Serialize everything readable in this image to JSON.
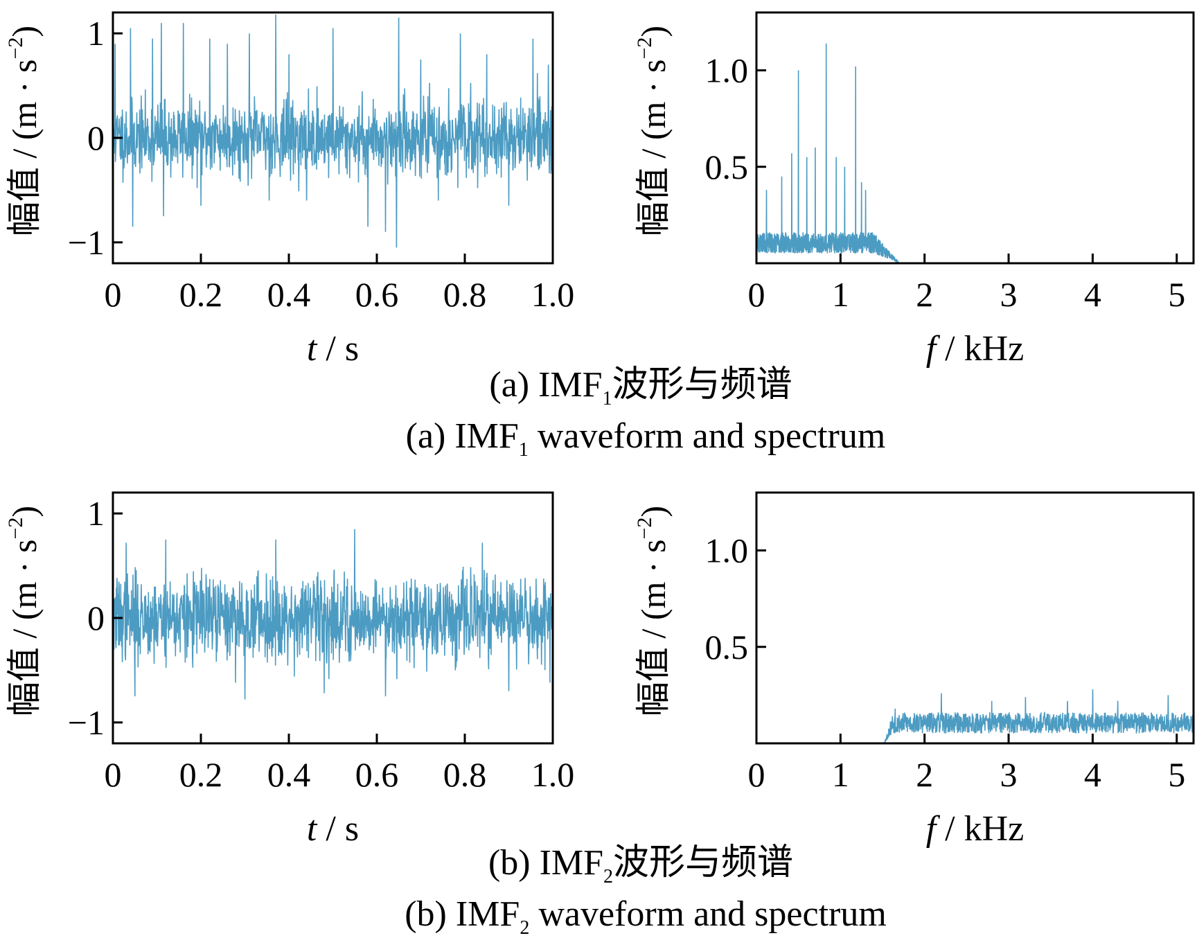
{
  "colors": {
    "signal": "#4c9bc2",
    "axis": "#000000",
    "background": "#ffffff"
  },
  "chart_data": [
    {
      "id": "a-wave",
      "type": "line",
      "title": "",
      "xlabel_italic": "t",
      "xlabel_rest": " / s",
      "ylabel": "幅值 / (m · s",
      "ylabel_sup": "−2",
      "ylabel_close": ")",
      "xlim": [
        0,
        1.0
      ],
      "ylim": [
        -1.2,
        1.2
      ],
      "xticks": [
        0,
        0.2,
        0.4,
        0.6,
        0.8,
        1.0
      ],
      "xticklabels": [
        "0",
        "0.2",
        "0.4",
        "0.6",
        "0.8",
        "1.0"
      ],
      "yticks": [
        -1,
        0,
        1
      ],
      "yticklabels": [
        "−1",
        "0",
        "1"
      ],
      "series": [
        {
          "name": "IMF1 waveform",
          "n": 1400,
          "seed": 11,
          "sigma": 0.17,
          "spikes": [
            [
              0.005,
              0.9
            ],
            [
              0.04,
              1.05
            ],
            [
              0.045,
              -0.85
            ],
            [
              0.09,
              0.95
            ],
            [
              0.11,
              1.1
            ],
            [
              0.115,
              -0.75
            ],
            [
              0.16,
              1.1
            ],
            [
              0.2,
              -0.65
            ],
            [
              0.22,
              0.95
            ],
            [
              0.26,
              0.9
            ],
            [
              0.31,
              1.0
            ],
            [
              0.355,
              -0.6
            ],
            [
              0.37,
              1.18
            ],
            [
              0.4,
              0.8
            ],
            [
              0.44,
              -0.6
            ],
            [
              0.5,
              1.05
            ],
            [
              0.58,
              -0.85
            ],
            [
              0.62,
              -0.9
            ],
            [
              0.65,
              1.15
            ],
            [
              0.645,
              -1.05
            ],
            [
              0.7,
              0.75
            ],
            [
              0.74,
              -0.6
            ],
            [
              0.79,
              1.0
            ],
            [
              0.85,
              0.8
            ],
            [
              0.9,
              -0.65
            ],
            [
              0.955,
              0.95
            ],
            [
              0.99,
              0.7
            ]
          ]
        }
      ]
    },
    {
      "id": "a-spec",
      "type": "line",
      "title": "",
      "xlabel_italic": "f",
      "xlabel_rest": " / kHz",
      "ylabel": "幅值 / (m · s",
      "ylabel_sup": "−2",
      "ylabel_close": ")",
      "xlim": [
        0,
        5.2
      ],
      "ylim": [
        0,
        1.3
      ],
      "xticks": [
        0,
        1,
        2,
        3,
        4,
        5
      ],
      "xticklabels": [
        "0",
        "1",
        "2",
        "3",
        "4",
        "5"
      ],
      "yticks": [
        0.5,
        1.0
      ],
      "yticklabels": [
        "0.5",
        "1.0"
      ],
      "series": [
        {
          "name": "IMF1 spectrum",
          "band": [
            0,
            1.7
          ],
          "rolloff": [
            1.4,
            1.7
          ],
          "base": 0.1,
          "n": 900,
          "seed": 23,
          "spikes": [
            [
              0.5,
              1.0
            ],
            [
              0.83,
              1.14
            ],
            [
              1.18,
              1.02
            ],
            [
              0.6,
              0.55
            ],
            [
              0.95,
              0.55
            ],
            [
              1.3,
              0.38
            ],
            [
              0.12,
              0.38
            ],
            [
              0.3,
              0.45
            ],
            [
              0.42,
              0.57
            ],
            [
              0.7,
              0.6
            ],
            [
              1.05,
              0.5
            ],
            [
              1.25,
              0.42
            ]
          ]
        }
      ]
    },
    {
      "id": "b-wave",
      "type": "line",
      "title": "",
      "xlabel_italic": "t",
      "xlabel_rest": " / s",
      "ylabel": "幅值 / (m · s",
      "ylabel_sup": "−2",
      "ylabel_close": ")",
      "xlim": [
        0,
        1.0
      ],
      "ylim": [
        -1.2,
        1.2
      ],
      "xticks": [
        0,
        0.2,
        0.4,
        0.6,
        0.8,
        1.0
      ],
      "xticklabels": [
        "0",
        "0.2",
        "0.4",
        "0.6",
        "0.8",
        "1.0"
      ],
      "yticks": [
        -1,
        0,
        1
      ],
      "yticklabels": [
        "−1",
        "0",
        "1"
      ],
      "series": [
        {
          "name": "IMF2 waveform",
          "n": 1400,
          "seed": 37,
          "sigma": 0.2,
          "spikes": [
            [
              0.03,
              0.72
            ],
            [
              0.05,
              -0.75
            ],
            [
              0.12,
              0.75
            ],
            [
              0.3,
              -0.78
            ],
            [
              0.37,
              0.75
            ],
            [
              0.48,
              -0.72
            ],
            [
              0.55,
              0.85
            ],
            [
              0.62,
              -0.75
            ],
            [
              0.84,
              0.72
            ],
            [
              0.9,
              -0.7
            ]
          ]
        }
      ]
    },
    {
      "id": "b-spec",
      "type": "line",
      "title": "",
      "xlabel_italic": "f",
      "xlabel_rest": " / kHz",
      "ylabel": "幅值 / (m · s",
      "ylabel_sup": "−2",
      "ylabel_close": ")",
      "xlim": [
        0,
        5.2
      ],
      "ylim": [
        0,
        1.3
      ],
      "xticks": [
        0,
        1,
        2,
        3,
        4,
        5
      ],
      "xticklabels": [
        "0",
        "1",
        "2",
        "3",
        "4",
        "5"
      ],
      "yticks": [
        0.5,
        1.0
      ],
      "yticklabels": [
        "0.5",
        "1.0"
      ],
      "series": [
        {
          "name": "IMF2 spectrum",
          "band": [
            1.52,
            5.2
          ],
          "rolloff": [
            1.52,
            1.62
          ],
          "base": 0.1,
          "n": 1100,
          "seed": 53,
          "spikes": [
            [
              1.65,
              0.18
            ],
            [
              2.2,
              0.26
            ],
            [
              2.8,
              0.22
            ],
            [
              3.2,
              0.24
            ],
            [
              3.7,
              0.22
            ],
            [
              4.0,
              0.28
            ],
            [
              4.3,
              0.22
            ],
            [
              4.9,
              0.25
            ]
          ]
        }
      ]
    }
  ],
  "captions": {
    "a_cn_pre": "(a) IMF",
    "a_cn_sub": "1",
    "a_cn_post": "波形与频谱",
    "a_en_pre": "(a) IMF",
    "a_en_sub": "1",
    "a_en_post": " waveform and spectrum",
    "b_cn_pre": "(b) IMF",
    "b_cn_sub": "2",
    "b_cn_post": "波形与频谱",
    "b_en_pre": "(b) IMF",
    "b_en_sub": "2",
    "b_en_post": " waveform and spectrum"
  }
}
